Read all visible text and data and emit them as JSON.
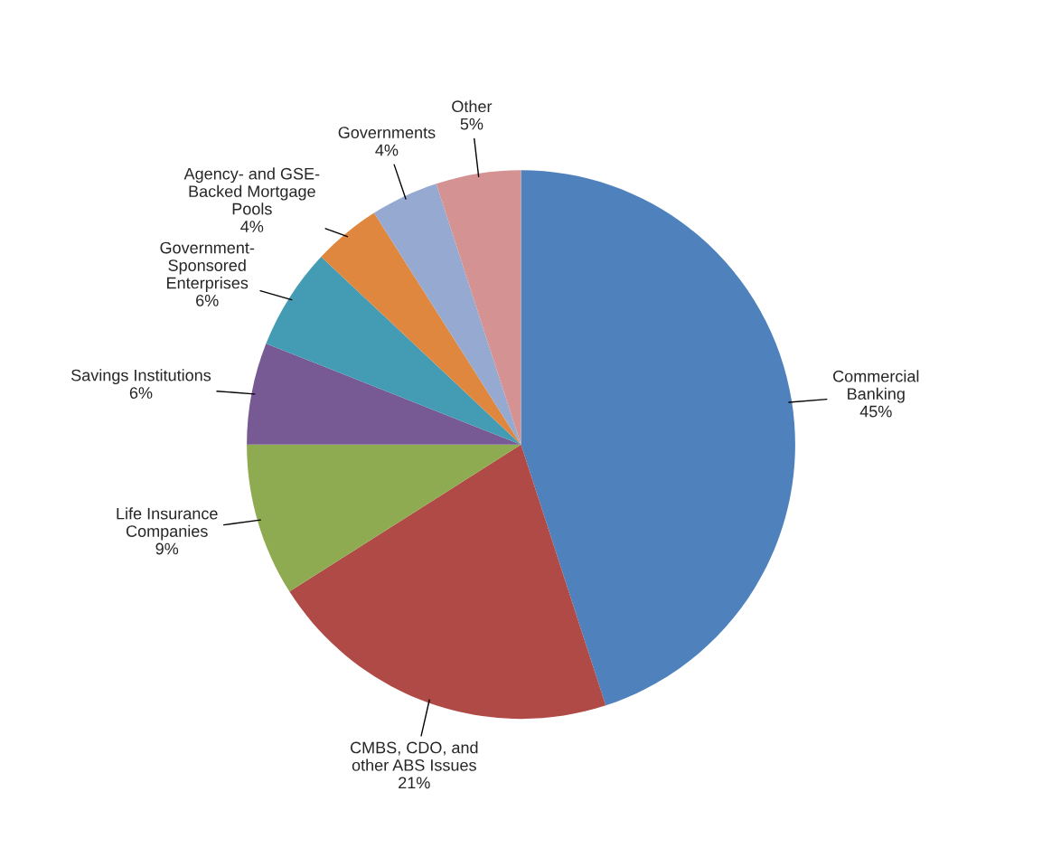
{
  "chart_data": {
    "type": "pie",
    "categories": [
      "Commercial\nBanking",
      "CMBS, CDO, and\nother ABS Issues",
      "Life Insurance\nCompanies",
      "Savings Institutions",
      "Government-\nSponsored\nEnterprises",
      "Agency- and GSE-\nBacked Mortgage\nPools",
      "Governments",
      "Other"
    ],
    "values": [
      45,
      21,
      9,
      6,
      6,
      4,
      4,
      5
    ],
    "value_labels": [
      "45%",
      "21%",
      "9%",
      "6%",
      "6%",
      "4%",
      "4%",
      "5%"
    ],
    "colors": [
      "#4f81bd",
      "#b04a47",
      "#8fab52",
      "#775a93",
      "#449cb4",
      "#e0873f",
      "#95a9d1",
      "#d49392"
    ],
    "legend": false
  }
}
